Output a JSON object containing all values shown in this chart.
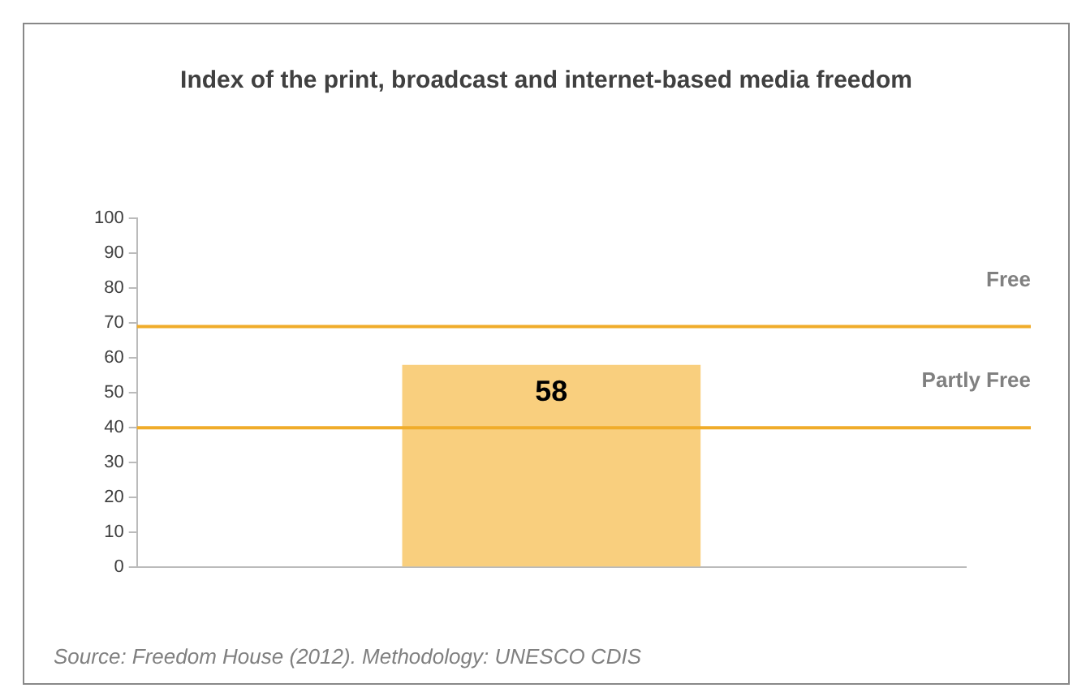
{
  "chart_data": {
    "type": "bar",
    "title": "Index of the print, broadcast and internet-based media freedom",
    "categories": [
      null
    ],
    "values": [
      58
    ],
    "color": "#f9cf7e",
    "ylim": [
      0,
      100
    ],
    "yticks": [
      0,
      10,
      20,
      30,
      40,
      50,
      60,
      70,
      80,
      90,
      100
    ],
    "grid": false,
    "data_labels": true,
    "ref_lines": [
      {
        "axis": "y",
        "value": 69,
        "label": "Free",
        "color": "#f0ac2a"
      },
      {
        "axis": "y",
        "value": 40,
        "label": "Partly Free",
        "color": "#f0ac2a"
      }
    ],
    "annotations": [
      "Source: Freedom House (2012). Methodology: UNESCO CDIS"
    ]
  }
}
